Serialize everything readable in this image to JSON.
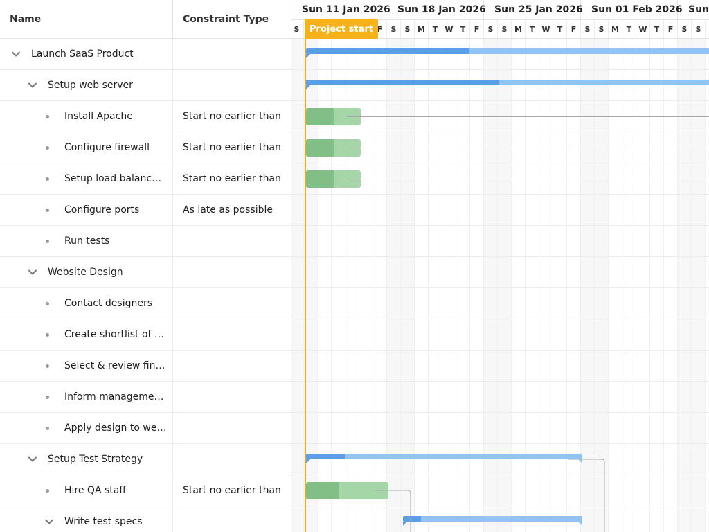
{
  "grid": {
    "headers": {
      "name": "Name",
      "constraint": "Constraint Type"
    },
    "rows": [
      {
        "name": "Launch SaaS Product",
        "constraint": "",
        "level": 0,
        "type": "parent"
      },
      {
        "name": "Setup web server",
        "constraint": "",
        "level": 1,
        "type": "parent"
      },
      {
        "name": "Install Apache",
        "constraint": "Start no earlier than",
        "level": 2,
        "type": "leaf"
      },
      {
        "name": "Configure firewall",
        "constraint": "Start no earlier than",
        "level": 2,
        "type": "leaf"
      },
      {
        "name": "Setup load balanc…",
        "constraint": "Start no earlier than",
        "level": 2,
        "type": "leaf"
      },
      {
        "name": "Configure ports",
        "constraint": "As late as possible",
        "level": 2,
        "type": "leaf"
      },
      {
        "name": "Run tests",
        "constraint": "",
        "level": 2,
        "type": "leaf"
      },
      {
        "name": "Website Design",
        "constraint": "",
        "level": 1,
        "type": "parent"
      },
      {
        "name": "Contact designers",
        "constraint": "",
        "level": 2,
        "type": "leaf"
      },
      {
        "name": "Create shortlist of t…",
        "constraint": "",
        "level": 2,
        "type": "leaf"
      },
      {
        "name": "Select & review fin…",
        "constraint": "",
        "level": 2,
        "type": "leaf"
      },
      {
        "name": "Inform manageme…",
        "constraint": "",
        "level": 2,
        "type": "leaf"
      },
      {
        "name": "Apply design to we…",
        "constraint": "",
        "level": 2,
        "type": "leaf"
      },
      {
        "name": "Setup Test Strategy",
        "constraint": "",
        "level": 1,
        "type": "parent"
      },
      {
        "name": "Hire QA staff",
        "constraint": "Start no earlier than",
        "level": 2,
        "type": "leaf"
      },
      {
        "name": "Write test specs",
        "constraint": "",
        "level": 2,
        "type": "parent"
      }
    ]
  },
  "timeline": {
    "weeks": [
      "Sun 11 Jan 2026",
      "Sun 18 Jan 2026",
      "Sun 25 Jan 2026",
      "Sun 01 Feb 2026",
      "Sun"
    ],
    "days": [
      "S",
      "S",
      "M",
      "T",
      "W",
      "T",
      "F",
      "S",
      "S",
      "M",
      "T",
      "W",
      "T",
      "F",
      "S",
      "S",
      "M",
      "T",
      "W",
      "T",
      "F",
      "S",
      "S",
      "M",
      "T",
      "W",
      "T",
      "F",
      "S",
      "S",
      "M"
    ],
    "project_start_label": "Project start",
    "bars": [
      {
        "row": 0,
        "kind": "parent",
        "start_day": 1,
        "end_day": 31,
        "progress": 0.38
      },
      {
        "row": 1,
        "kind": "parent",
        "start_day": 1,
        "end_day": 31,
        "progress": 0.45
      },
      {
        "row": 2,
        "kind": "task",
        "start_day": 1,
        "end_day": 4,
        "progress": 0.5
      },
      {
        "row": 3,
        "kind": "task",
        "start_day": 1,
        "end_day": 4,
        "progress": 0.5
      },
      {
        "row": 4,
        "kind": "task",
        "start_day": 1,
        "end_day": 4,
        "progress": 0.5
      },
      {
        "row": 13,
        "kind": "parent",
        "start_day": 1,
        "end_day": 20,
        "progress": 0.14
      },
      {
        "row": 14,
        "kind": "task",
        "start_day": 1,
        "end_day": 6,
        "progress": 0.4
      },
      {
        "row": 15,
        "kind": "parent",
        "start_day": 8,
        "end_day": 20,
        "progress": 0.1
      }
    ]
  },
  "colors": {
    "accent": "#f7b21b",
    "parent_bar": "#91c4f2",
    "parent_progress": "#5b9de6",
    "task_bar": "#a4d6a8",
    "task_progress": "#82bf86"
  }
}
